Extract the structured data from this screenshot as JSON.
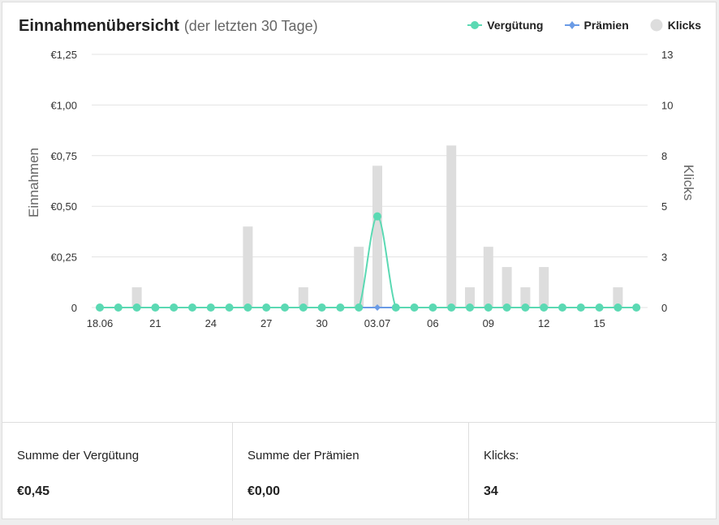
{
  "header": {
    "title": "Einnahmenübersicht",
    "subtitle": "(der letzten 30 Tage)"
  },
  "legend": [
    {
      "label": "Vergütung",
      "color": "#5bd9b3",
      "icon": "circle-marker"
    },
    {
      "label": "Prämien",
      "color": "#6a9be6",
      "icon": "diamond-marker"
    },
    {
      "label": "Klicks",
      "color": "#dddddd",
      "icon": "circle-marker"
    }
  ],
  "axes": {
    "y_left_title": "Einnahmen",
    "y_right_title": "Klicks",
    "y_left_ticks": [
      "€1,25",
      "€1,00",
      "€0,75",
      "€0,50",
      "€0,25",
      "0"
    ],
    "y_right_ticks": [
      "13",
      "10",
      "8",
      "5",
      "3",
      "0"
    ],
    "x_ticks": [
      "18.06",
      "21",
      "24",
      "27",
      "30",
      "03.07",
      "06",
      "09",
      "12",
      "15"
    ]
  },
  "chart_data": {
    "type": "bar",
    "x": [
      "18.06",
      "19.06",
      "20.06",
      "21.06",
      "22.06",
      "23.06",
      "24.06",
      "25.06",
      "26.06",
      "27.06",
      "28.06",
      "29.06",
      "30.06",
      "01.07",
      "02.07",
      "03.07",
      "04.07",
      "05.07",
      "06.07",
      "07.07",
      "08.07",
      "09.07",
      "10.07",
      "11.07",
      "12.07",
      "13.07",
      "14.07",
      "15.07",
      "16.07",
      "17.07"
    ],
    "series": [
      {
        "name": "Klicks",
        "type": "bar",
        "axis": "right",
        "values": [
          0,
          0,
          1,
          0,
          0,
          0,
          0,
          0,
          4,
          0,
          0,
          1,
          0,
          0,
          3,
          7,
          0,
          0,
          0,
          8,
          1,
          3,
          2,
          1,
          2,
          0,
          0,
          0,
          1,
          0
        ]
      },
      {
        "name": "Vergütung",
        "type": "line",
        "axis": "left",
        "values": [
          0,
          0,
          0,
          0,
          0,
          0,
          0,
          0,
          0,
          0,
          0,
          0,
          0,
          0,
          0,
          0.45,
          0,
          0,
          0,
          0,
          0,
          0,
          0,
          0,
          0,
          0,
          0,
          0,
          0,
          0
        ]
      },
      {
        "name": "Prämien",
        "type": "line",
        "axis": "left",
        "values": [
          0,
          0,
          0,
          0,
          0,
          0,
          0,
          0,
          0,
          0,
          0,
          0,
          0,
          0,
          0,
          0,
          0,
          0,
          0,
          0,
          0,
          0,
          0,
          0,
          0,
          0,
          0,
          0,
          0,
          0
        ]
      }
    ],
    "ylim_left": [
      0,
      1.25
    ],
    "ylim_right": [
      0,
      12.5
    ],
    "ylabel_left": "Einnahmen",
    "ylabel_right": "Klicks",
    "grid": true,
    "legend_position": "top-right"
  },
  "summary": [
    {
      "label": "Summe der Vergütung",
      "value": "€0,45"
    },
    {
      "label": "Summe der Prämien",
      "value": "€0,00"
    },
    {
      "label": "Klicks:",
      "value": "34"
    }
  ]
}
